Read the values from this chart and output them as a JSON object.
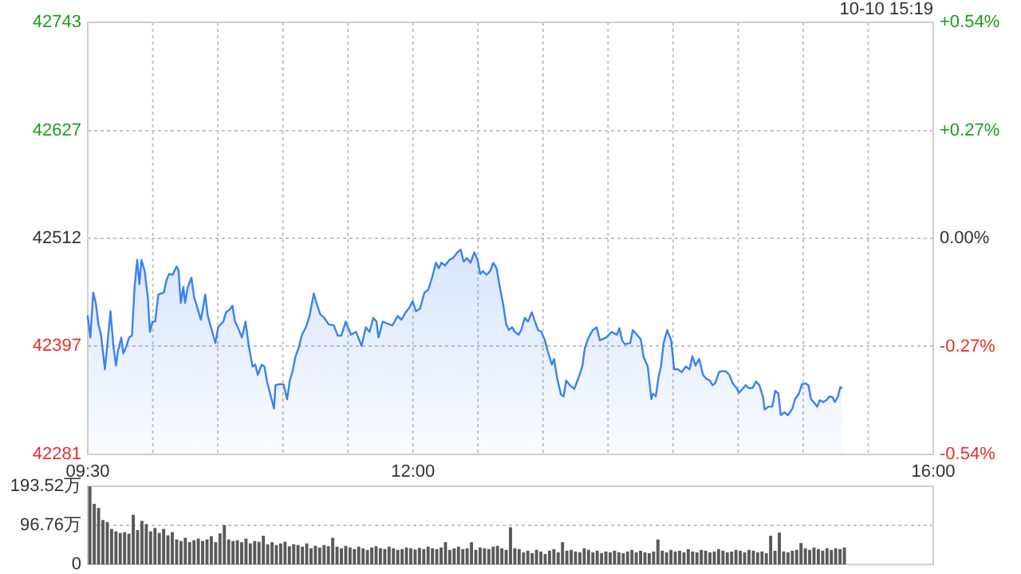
{
  "chart_data": [
    {
      "type": "area",
      "subtitle": "10-10 15:19",
      "xlim": [
        9.5,
        16
      ],
      "xticks": [
        {
          "value": 9.5,
          "label": "09:30"
        },
        {
          "value": 10,
          "label": null
        },
        {
          "value": 10.5,
          "label": null
        },
        {
          "value": 11,
          "label": null
        },
        {
          "value": 11.5,
          "label": null
        },
        {
          "value": 12,
          "label": "12:00"
        },
        {
          "value": 12.5,
          "label": null
        },
        {
          "value": 13,
          "label": null
        },
        {
          "value": 13.5,
          "label": null
        },
        {
          "value": 14,
          "label": null
        },
        {
          "value": 14.5,
          "label": null
        },
        {
          "value": 15,
          "label": null
        },
        {
          "value": 15.5,
          "label": null
        },
        {
          "value": 16,
          "label": "16:00"
        }
      ],
      "ylim": [
        42281,
        42743
      ],
      "yticks": [
        42281,
        42397,
        42512,
        42627,
        42743
      ],
      "y2lim": [
        -0.54,
        0.54
      ],
      "y2ticks": [
        {
          "value": -0.54,
          "label": "-0.54%"
        },
        {
          "value": -0.27,
          "label": "-0.27%"
        },
        {
          "value": 0,
          "label": "0.00%"
        },
        {
          "value": 0.27,
          "label": "+0.27%"
        },
        {
          "value": 0.54,
          "label": "+0.54%"
        }
      ],
      "grid": true,
      "x": [
        9.5,
        9.52,
        9.542,
        9.562,
        9.582,
        9.602,
        9.632,
        9.652,
        9.675,
        9.697,
        9.717,
        9.733,
        9.758,
        9.773,
        9.798,
        9.818,
        9.84,
        9.86,
        9.88,
        9.897,
        9.913,
        9.938,
        9.962,
        9.978,
        9.998,
        10.018,
        10.043,
        10.063,
        10.085,
        10.105,
        10.125,
        10.153,
        10.183,
        10.198,
        10.215,
        10.235,
        10.248,
        10.268,
        10.297,
        10.318,
        10.338,
        10.37,
        10.392,
        10.403,
        10.423,
        10.453,
        10.482,
        10.502,
        10.522,
        10.542,
        10.563,
        10.592,
        10.612,
        10.632,
        10.657,
        10.685,
        10.713,
        10.738,
        10.767,
        10.788,
        10.808,
        10.837,
        10.858,
        10.877,
        10.902,
        10.932,
        10.943,
        10.972,
        11.005,
        11.033,
        11.053,
        11.073,
        11.098,
        11.122,
        11.147,
        11.177,
        11.205,
        11.238,
        11.258,
        11.287,
        11.318,
        11.352,
        11.392,
        11.422,
        11.45,
        11.483,
        11.523,
        11.563,
        11.605,
        11.638,
        11.667,
        11.695,
        11.72,
        11.735,
        11.768,
        11.802,
        11.842,
        11.883,
        11.912,
        11.94,
        11.973,
        11.998,
        12.023,
        12.055,
        12.088,
        12.117,
        12.145,
        12.177,
        12.198,
        12.218,
        12.247,
        12.28,
        12.308,
        12.342,
        12.367,
        12.39,
        12.415,
        12.443,
        12.472,
        12.497,
        12.517,
        12.538,
        12.567,
        12.593,
        12.618,
        12.643,
        12.668,
        12.692,
        12.717,
        12.738,
        12.762,
        12.783,
        12.812,
        12.832,
        12.86,
        12.885,
        12.913,
        12.938,
        12.962,
        12.987,
        13.012,
        13.035,
        13.068,
        13.085,
        13.108,
        13.138,
        13.158,
        13.178,
        13.207,
        13.24,
        13.273,
        13.302,
        13.322,
        13.35,
        13.383,
        13.412,
        13.437,
        13.485,
        13.527,
        13.568,
        13.587,
        13.608,
        13.628,
        13.67,
        13.69,
        13.722,
        13.752,
        13.772,
        13.805,
        13.833,
        13.845,
        13.867,
        13.887,
        13.907,
        13.927,
        13.955,
        13.985,
        14.008,
        14.037,
        14.065,
        14.098,
        14.127,
        14.148,
        14.172,
        14.2,
        14.23,
        14.255,
        14.283,
        14.303,
        14.323,
        14.353,
        14.377,
        14.405,
        14.433,
        14.458,
        14.487,
        14.507,
        14.54,
        14.557,
        14.58,
        14.61,
        14.638,
        14.663,
        14.692,
        14.703,
        14.733,
        14.762,
        14.785,
        14.81,
        14.827,
        14.855,
        14.883,
        14.917,
        14.937,
        14.967,
        14.99,
        15.018,
        15.04,
        15.06,
        15.08,
        15.108,
        15.128,
        15.153,
        15.178,
        15.202,
        15.227,
        15.243,
        15.268,
        15.285,
        15.297
      ],
      "series": [
        {
          "color": "#3b82f0",
          "values": [
            42429,
            42406,
            42454,
            42443,
            42420,
            42409,
            42372,
            42400,
            42434,
            42397,
            42376,
            42392,
            42406,
            42389,
            42397,
            42406,
            42408,
            42460,
            42489,
            42463,
            42489,
            42477,
            42449,
            42412,
            42423,
            42423,
            42452,
            42453,
            42454,
            42467,
            42474,
            42473,
            42482,
            42478,
            42443,
            42460,
            42443,
            42459,
            42470,
            42449,
            42440,
            42425,
            42443,
            42452,
            42429,
            42414,
            42400,
            42417,
            42420,
            42423,
            42433,
            42436,
            42440,
            42423,
            42416,
            42406,
            42423,
            42397,
            42375,
            42377,
            42366,
            42377,
            42375,
            42360,
            42346,
            42330,
            42355,
            42356,
            42356,
            42340,
            42360,
            42369,
            42386,
            42395,
            42409,
            42417,
            42429,
            42453,
            42443,
            42431,
            42427,
            42420,
            42419,
            42408,
            42408,
            42423,
            42409,
            42412,
            42397,
            42417,
            42412,
            42427,
            42423,
            42406,
            42423,
            42421,
            42419,
            42429,
            42425,
            42432,
            42438,
            42445,
            42434,
            42437,
            42454,
            42457,
            42469,
            42486,
            42480,
            42486,
            42483,
            42489,
            42491,
            42497,
            42500,
            42487,
            42491,
            42486,
            42497,
            42489,
            42474,
            42477,
            42473,
            42477,
            42486,
            42480,
            42460,
            42443,
            42420,
            42414,
            42417,
            42412,
            42409,
            42414,
            42427,
            42423,
            42433,
            42423,
            42414,
            42412,
            42404,
            42392,
            42377,
            42383,
            42363,
            42345,
            42343,
            42360,
            42355,
            42351,
            42363,
            42375,
            42395,
            42406,
            42414,
            42417,
            42403,
            42406,
            42412,
            42409,
            42416,
            42403,
            42399,
            42400,
            42414,
            42409,
            42404,
            42386,
            42375,
            42340,
            42346,
            42343,
            42363,
            42375,
            42400,
            42414,
            42403,
            42372,
            42372,
            42369,
            42375,
            42372,
            42386,
            42376,
            42383,
            42366,
            42362,
            42360,
            42355,
            42357,
            42369,
            42370,
            42370,
            42366,
            42357,
            42352,
            42347,
            42352,
            42355,
            42352,
            42352,
            42359,
            42355,
            42342,
            42329,
            42332,
            42332,
            42349,
            42346,
            42323,
            42326,
            42323,
            42330,
            42340,
            42346,
            42356,
            42357,
            42355,
            42340,
            42337,
            42332,
            42339,
            42337,
            42339,
            42343,
            42342,
            42337,
            42343,
            42353,
            42352
          ]
        }
      ]
    },
    {
      "type": "bar",
      "tick_labels": "y",
      "grid": "y",
      "ylim": [
        0,
        193.52
      ],
      "yticks": [
        0,
        {
          "value": 96.76,
          "label": "96.76万"
        },
        {
          "value": 193.52,
          "label": "193.52万"
        }
      ],
      "categories": [
        null,
        null,
        null,
        null,
        null,
        null,
        null,
        null,
        null,
        null,
        null,
        null,
        null,
        null,
        null,
        null,
        null,
        null,
        null,
        null,
        null,
        null,
        null,
        null,
        null,
        null,
        null,
        null,
        null,
        null,
        null,
        null,
        null,
        null,
        null,
        null,
        null,
        null,
        null,
        null,
        null,
        null,
        null,
        null,
        null,
        null,
        null,
        null,
        null,
        null,
        null,
        null,
        null,
        null,
        null,
        null,
        null,
        null,
        null,
        null,
        null,
        null,
        null,
        null,
        null,
        null,
        null,
        null,
        null,
        null,
        null,
        null,
        null,
        null,
        null,
        null,
        null,
        null,
        null,
        null,
        null,
        null,
        null,
        null,
        null,
        null,
        null,
        null,
        null,
        null,
        null,
        null,
        null,
        null,
        null,
        null,
        null,
        null,
        null,
        null,
        null,
        null,
        null,
        null,
        null,
        null,
        null,
        null,
        null,
        null,
        null,
        null,
        null,
        null,
        null,
        null,
        null,
        null,
        null,
        null,
        null,
        null,
        null,
        null,
        null,
        null,
        null,
        null,
        null,
        null,
        null,
        null,
        null,
        null,
        null,
        null,
        null,
        null,
        null,
        null,
        null,
        null,
        null,
        null,
        null,
        null,
        null,
        null,
        null,
        null,
        null,
        null,
        null,
        null,
        null,
        null,
        null,
        null,
        null,
        null,
        null,
        null,
        null,
        null,
        null,
        null,
        null,
        null,
        null,
        null,
        null,
        null,
        null,
        null,
        null,
        null,
        null,
        null,
        null,
        null,
        null,
        null,
        null,
        null,
        null,
        null,
        null,
        null,
        null,
        null,
        null,
        null,
        null,
        null,
        null
      ],
      "series": [
        {
          "color": "#5a5a5a",
          "values": [
            193,
            150,
            140,
            110,
            105,
            88,
            82,
            78,
            80,
            76,
            123,
            85,
            108,
            100,
            82,
            90,
            78,
            88,
            72,
            80,
            62,
            58,
            66,
            55,
            60,
            64,
            58,
            62,
            70,
            55,
            77,
            97,
            62,
            58,
            60,
            55,
            64,
            52,
            58,
            56,
            71,
            50,
            55,
            48,
            52,
            56,
            45,
            50,
            48,
            44,
            52,
            40,
            46,
            42,
            48,
            45,
            66,
            44,
            40,
            46,
            42,
            38,
            44,
            40,
            36,
            42,
            45,
            40,
            38,
            44,
            40,
            36,
            38,
            42,
            40,
            37,
            41,
            38,
            44,
            40,
            38,
            42,
            55,
            36,
            40,
            44,
            38,
            40,
            55,
            36,
            42,
            40,
            38,
            44,
            46,
            40,
            36,
            92,
            40,
            38,
            30,
            34,
            28,
            36,
            32,
            26,
            34,
            38,
            30,
            55,
            34,
            36,
            32,
            30,
            40,
            36,
            30,
            34,
            28,
            32,
            30,
            34,
            30,
            28,
            32,
            36,
            30,
            34,
            30,
            28,
            32,
            62,
            34,
            30,
            36,
            32,
            34,
            30,
            38,
            32,
            30,
            36,
            34,
            30,
            32,
            38,
            34,
            30,
            32,
            36,
            34,
            30,
            36,
            34,
            30,
            32,
            28,
            71,
            34,
            79,
            32,
            30,
            34,
            36,
            53,
            40,
            36,
            42,
            38,
            34,
            40,
            36,
            40,
            38,
            42,
            null,
            null,
            null,
            null,
            null,
            null,
            null,
            null,
            null,
            null,
            null,
            null,
            null,
            null,
            null,
            null,
            null,
            null,
            null,
            null
          ]
        }
      ]
    }
  ]
}
